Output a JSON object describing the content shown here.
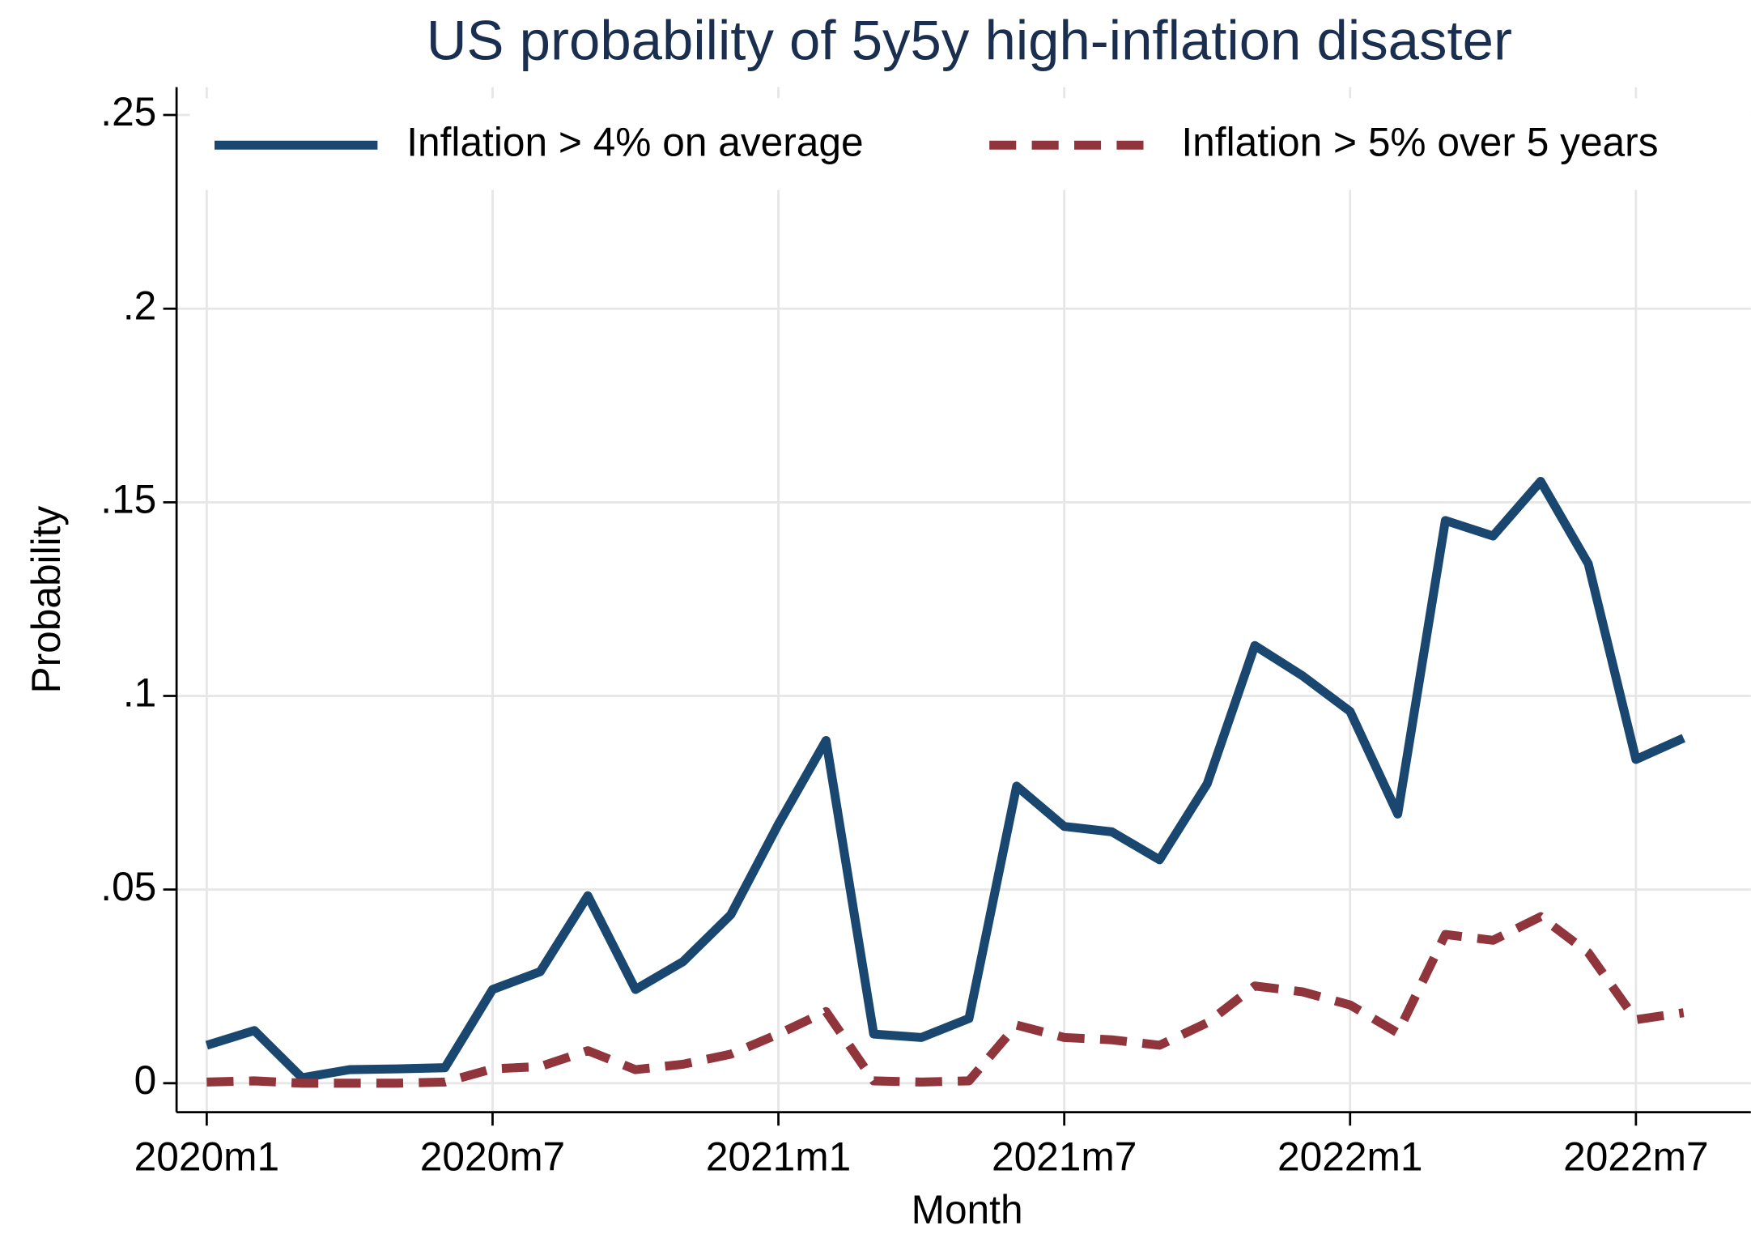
{
  "chart_data": {
    "type": "line",
    "title": "US probability of 5y5y high-inflation disaster",
    "x_label": "Month",
    "y_label": "Probability",
    "categories": [
      "2020m1",
      null,
      null,
      null,
      null,
      null,
      "2020m7",
      null,
      null,
      null,
      null,
      null,
      "2021m1",
      null,
      null,
      null,
      null,
      null,
      "2021m7",
      null,
      null,
      null,
      null,
      null,
      "2022m1",
      null,
      null,
      null,
      null,
      null,
      "2022m7",
      null
    ],
    "series": [
      {
        "name": "Inflation > 4% on average",
        "color": "#1a476f",
        "dash": false,
        "values": [
          0.0098,
          0.0136,
          0.0014,
          0.0035,
          0.0037,
          0.004,
          0.0242,
          0.0288,
          0.0484,
          0.0242,
          0.0314,
          0.0435,
          0.0669,
          0.0885,
          0.0127,
          0.0118,
          0.0167,
          0.0767,
          0.0663,
          0.0649,
          0.0577,
          0.0773,
          0.113,
          0.1052,
          0.096,
          0.0695,
          0.1453,
          0.1413,
          0.1554,
          0.1341,
          0.0836,
          0.0891
        ]
      },
      {
        "name": "Inflation > 5% over 5 years",
        "color": "#90353b",
        "dash": true,
        "values": [
          0.0003,
          0.0006,
          0,
          0,
          0,
          0.0003,
          0.0037,
          0.0043,
          0.0084,
          0.0035,
          0.0049,
          0.0075,
          0.0127,
          0.0185,
          0.0006,
          0.0003,
          0.0006,
          0.015,
          0.0118,
          0.0112,
          0.0098,
          0.0156,
          0.0251,
          0.0236,
          0.0202,
          0.013,
          0.0384,
          0.0369,
          0.043,
          0.0337,
          0.0164,
          0.0182
        ]
      }
    ],
    "ylim": [
      0,
      0.25
    ],
    "yticks": [
      0,
      {
        "value": 0.05,
        "label": ".05"
      },
      {
        "value": 0.1,
        "label": ".1"
      },
      {
        "value": 0.15,
        "label": ".15"
      },
      {
        "value": 0.2,
        "label": ".2"
      },
      {
        "value": 0.25,
        "label": ".25"
      }
    ],
    "grid": true,
    "legend_position": "top"
  }
}
